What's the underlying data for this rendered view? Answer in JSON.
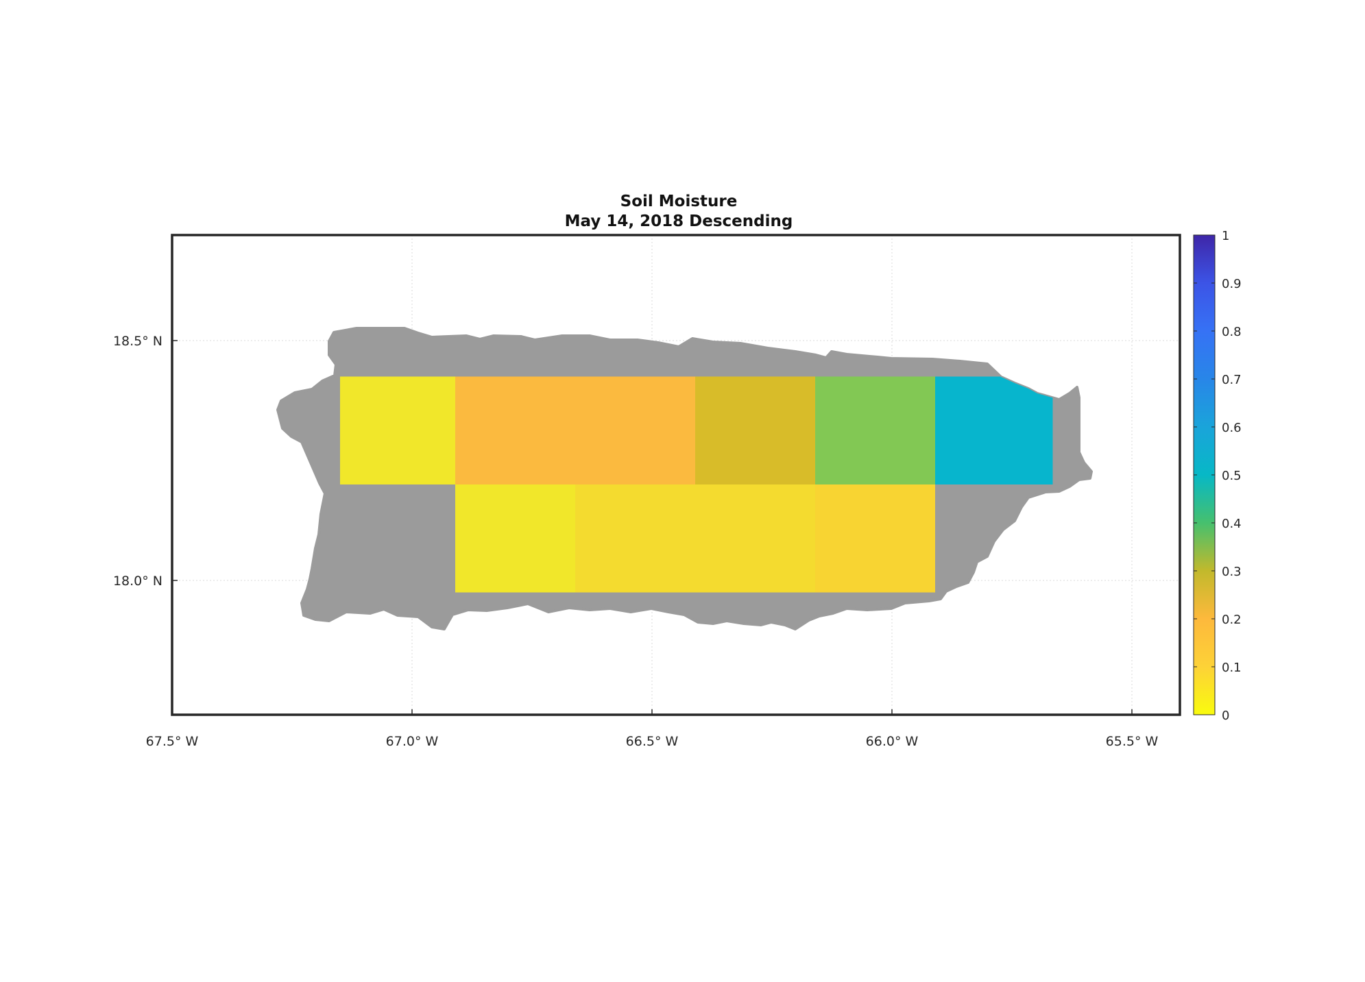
{
  "title": "Soil Moisture",
  "subtitle": "May 14, 2018 Descending",
  "chart_data": {
    "type": "heatmap",
    "title": "Soil Moisture",
    "subtitle": "May 14, 2018 Descending",
    "x_range": [
      -67.5,
      -65.4
    ],
    "y_range": [
      17.72,
      18.72
    ],
    "x_ticks": [
      {
        "value": -67.5,
        "label": "67.5° W"
      },
      {
        "value": -67.0,
        "label": "67.0° W"
      },
      {
        "value": -66.5,
        "label": "66.5° W"
      },
      {
        "value": -66.0,
        "label": "66.0° W"
      },
      {
        "value": -65.5,
        "label": "65.5° W"
      }
    ],
    "y_ticks": [
      {
        "value": 18.5,
        "label": "18.5° N"
      },
      {
        "value": 18.0,
        "label": "18.0° N"
      }
    ],
    "grid": true,
    "no_data_color": "#9b9b9b",
    "colorbar": {
      "min": 0,
      "max": 1,
      "ticks": [
        "0",
        "0.1",
        "0.2",
        "0.3",
        "0.4",
        "0.5",
        "0.6",
        "0.7",
        "0.8",
        "0.9",
        "1"
      ],
      "stops": [
        {
          "v": 0.0,
          "c": "#f9fb0e"
        },
        {
          "v": 0.1,
          "c": "#fdd237"
        },
        {
          "v": 0.2,
          "c": "#fdb93c"
        },
        {
          "v": 0.3,
          "c": "#c2b92c"
        },
        {
          "v": 0.4,
          "c": "#46c06e"
        },
        {
          "v": 0.5,
          "c": "#07b8c6"
        },
        {
          "v": 0.6,
          "c": "#1aa4da"
        },
        {
          "v": 0.7,
          "c": "#2886e8"
        },
        {
          "v": 0.8,
          "c": "#3672f5"
        },
        {
          "v": 0.9,
          "c": "#3c54e6"
        },
        {
          "v": 1.0,
          "c": "#3e26a8"
        }
      ]
    },
    "cells": [
      {
        "lon": [
          -67.15,
          -66.91
        ],
        "lat": [
          18.2,
          18.425
        ],
        "value": 0.02,
        "color": "#f1e72a"
      },
      {
        "lon": [
          -66.91,
          -66.41
        ],
        "lat": [
          18.2,
          18.425
        ],
        "value": 0.18,
        "color": "#fbba3f"
      },
      {
        "lon": [
          -66.41,
          -66.16
        ],
        "lat": [
          18.2,
          18.425
        ],
        "value": 0.27,
        "color": "#d8bc29"
      },
      {
        "lon": [
          -66.16,
          -65.91
        ],
        "lat": [
          18.2,
          18.425
        ],
        "value": 0.38,
        "color": "#82c854"
      },
      {
        "lon": [
          -65.91,
          -65.665
        ],
        "lat": [
          18.2,
          18.425
        ],
        "value": 0.52,
        "color": "#07b5cd"
      },
      {
        "lon": [
          -66.91,
          -66.66
        ],
        "lat": [
          17.975,
          18.2
        ],
        "value": 0.01,
        "color": "#f1e72a"
      },
      {
        "lon": [
          -66.66,
          -66.16
        ],
        "lat": [
          17.975,
          18.2
        ],
        "value": 0.05,
        "color": "#f4db2f"
      },
      {
        "lon": [
          -66.16,
          -65.91
        ],
        "lat": [
          17.975,
          18.2
        ],
        "value": 0.08,
        "color": "#f8d432"
      }
    ]
  }
}
